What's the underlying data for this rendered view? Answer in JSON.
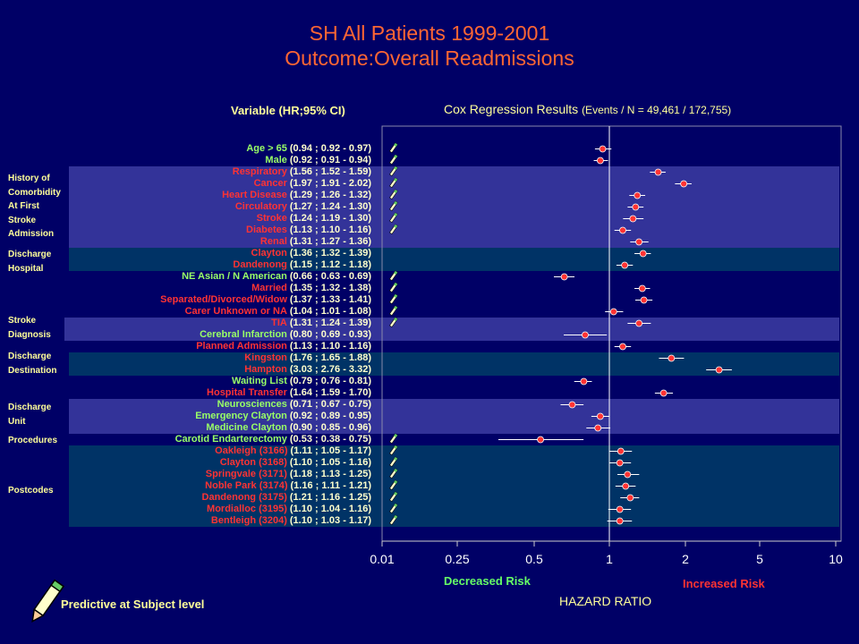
{
  "title_line1": "SH All Patients 1999-2001",
  "title_line2": "Outcome:Overall Readmissions",
  "header_variable": "Variable (HR;95% CI)",
  "header_cox": "Cox Regression Results",
  "header_cox_sub": "(Events / N = 49,461 / 172,755)",
  "groups": [
    {
      "label": "History of\nComorbidity\nAt First\nStroke\nAdmission"
    },
    {
      "label": "Discharge\nHospital"
    },
    {
      "label": "Stroke\nDiagnosis"
    },
    {
      "label": "Discharge\nDestination"
    },
    {
      "label": "Discharge\nUnit"
    },
    {
      "label": "Procedures"
    },
    {
      "label": "Postcodes"
    }
  ],
  "decreased_risk": "Decreased Risk",
  "increased_risk": "Increased Risk",
  "x_axis_label": "HAZARD RATIO",
  "footer": "Predictive at Subject level",
  "colors": {
    "background": "#000066",
    "band_blue": "#333399",
    "band_teal": "#003366",
    "point": "#ff3333",
    "title": "#ff6633",
    "header": "#ffff99"
  },
  "chart_data": {
    "type": "forest",
    "title": "SH All Patients 1999-2001",
    "subtitle": "Outcome:Overall Readmissions",
    "xlabel": "HAZARD RATIO",
    "x_scale": "log",
    "xlim": [
      0.01,
      10
    ],
    "xticks": [
      "0.01",
      "0.25",
      "0.5",
      "1",
      "2",
      "5",
      "10"
    ],
    "xtick_values": [
      0.01,
      0.25,
      0.5,
      1,
      2,
      5,
      10
    ],
    "reference_line": 1,
    "rows": [
      {
        "name": "Age > 65",
        "ci_text": "(0.94 ; 0.92 - 0.97)",
        "hr": 0.94,
        "lo": 0.92,
        "hi": 0.97,
        "name_color": "green",
        "icon": true
      },
      {
        "name": "Male",
        "ci_text": "(0.92 ; 0.91 - 0.94)",
        "hr": 0.92,
        "lo": 0.91,
        "hi": 0.94,
        "name_color": "green",
        "icon": true
      },
      {
        "name": "Respiratory",
        "ci_text": "(1.56 ; 1.52 - 1.59)",
        "hr": 1.56,
        "lo": 1.52,
        "hi": 1.59,
        "name_color": "red",
        "icon": true
      },
      {
        "name": "Cancer",
        "ci_text": "(1.97 ; 1.91 - 2.02)",
        "hr": 1.97,
        "lo": 1.91,
        "hi": 2.02,
        "name_color": "red",
        "icon": true
      },
      {
        "name": "Heart Disease",
        "ci_text": "(1.29 ; 1.26 - 1.32)",
        "hr": 1.29,
        "lo": 1.26,
        "hi": 1.32,
        "name_color": "red",
        "icon": true
      },
      {
        "name": "Circulatory",
        "ci_text": "(1.27 ; 1.24 - 1.30)",
        "hr": 1.27,
        "lo": 1.24,
        "hi": 1.3,
        "name_color": "red",
        "icon": true
      },
      {
        "name": "Stroke",
        "ci_text": "(1.24 ; 1.19 - 1.30)",
        "hr": 1.24,
        "lo": 1.19,
        "hi": 1.3,
        "name_color": "red",
        "icon": true
      },
      {
        "name": "Diabetes",
        "ci_text": "(1.13 ; 1.10 - 1.16)",
        "hr": 1.13,
        "lo": 1.1,
        "hi": 1.16,
        "name_color": "red",
        "icon": true
      },
      {
        "name": "Renal",
        "ci_text": "(1.31 ; 1.27 - 1.36)",
        "hr": 1.31,
        "lo": 1.27,
        "hi": 1.36,
        "name_color": "red",
        "icon": false
      },
      {
        "name": "Clayton",
        "ci_text": "(1.36 ; 1.32 - 1.39)",
        "hr": 1.36,
        "lo": 1.32,
        "hi": 1.39,
        "name_color": "red",
        "icon": false
      },
      {
        "name": "Dandenong",
        "ci_text": "(1.15 ; 1.12 - 1.18)",
        "hr": 1.15,
        "lo": 1.12,
        "hi": 1.18,
        "name_color": "red",
        "icon": false
      },
      {
        "name": "NE Asian / N American",
        "ci_text": "(0.66 ; 0.63 - 0.69)",
        "hr": 0.66,
        "lo": 0.63,
        "hi": 0.69,
        "name_color": "green",
        "icon": true
      },
      {
        "name": "Married",
        "ci_text": "(1.35 ; 1.32 - 1.38)",
        "hr": 1.35,
        "lo": 1.32,
        "hi": 1.38,
        "name_color": "red",
        "icon": true
      },
      {
        "name": "Separated/Divorced/Widow",
        "ci_text": "(1.37 ; 1.33 - 1.41)",
        "hr": 1.37,
        "lo": 1.33,
        "hi": 1.41,
        "name_color": "red",
        "icon": true
      },
      {
        "name": "Carer Unknown or NA",
        "ci_text": "(1.04 ; 1.01 - 1.08)",
        "hr": 1.04,
        "lo": 1.01,
        "hi": 1.08,
        "name_color": "red",
        "icon": true
      },
      {
        "name": "TIA",
        "ci_text": "(1.31 ; 1.24 - 1.39)",
        "hr": 1.31,
        "lo": 1.24,
        "hi": 1.39,
        "name_color": "red",
        "icon": true
      },
      {
        "name": "Cerebral Infarction",
        "ci_text": "(0.80 ; 0.69 - 0.93)",
        "hr": 0.8,
        "lo": 0.69,
        "hi": 0.93,
        "name_color": "green",
        "icon": false
      },
      {
        "name": "Planned Admission",
        "ci_text": "(1.13 ; 1.10 - 1.16)",
        "hr": 1.13,
        "lo": 1.1,
        "hi": 1.16,
        "name_color": "red",
        "icon": false
      },
      {
        "name": "Kingston",
        "ci_text": "(1.76 ; 1.65 - 1.88)",
        "hr": 1.76,
        "lo": 1.65,
        "hi": 1.88,
        "name_color": "red",
        "icon": false
      },
      {
        "name": "Hampton",
        "ci_text": "(3.03 ; 2.76 - 3.32)",
        "hr": 3.03,
        "lo": 2.76,
        "hi": 3.32,
        "name_color": "red",
        "icon": false
      },
      {
        "name": "Waiting List",
        "ci_text": "(0.79 ; 0.76 - 0.81)",
        "hr": 0.79,
        "lo": 0.76,
        "hi": 0.81,
        "name_color": "green",
        "icon": false
      },
      {
        "name": "Hospital Transfer",
        "ci_text": "(1.64 ; 1.59 - 1.70)",
        "hr": 1.64,
        "lo": 1.59,
        "hi": 1.7,
        "name_color": "red",
        "icon": false
      },
      {
        "name": "Neurosciences",
        "ci_text": "(0.71 ; 0.67 - 0.75)",
        "hr": 0.71,
        "lo": 0.67,
        "hi": 0.75,
        "name_color": "green",
        "icon": false
      },
      {
        "name": "Emergency Clayton",
        "ci_text": "(0.92 ; 0.89 - 0.95)",
        "hr": 0.92,
        "lo": 0.89,
        "hi": 0.95,
        "name_color": "green",
        "icon": false
      },
      {
        "name": "Medicine Clayton",
        "ci_text": "(0.90 ; 0.85 - 0.96)",
        "hr": 0.9,
        "lo": 0.85,
        "hi": 0.96,
        "name_color": "green",
        "icon": false
      },
      {
        "name": "Carotid Endarterectomy",
        "ci_text": "(0.53 ; 0.38 - 0.75)",
        "hr": 0.53,
        "lo": 0.38,
        "hi": 0.75,
        "name_color": "green",
        "icon": true
      },
      {
        "name": "Oakleigh (3166)",
        "ci_text": "(1.11 ; 1.05 - 1.17)",
        "hr": 1.11,
        "lo": 1.05,
        "hi": 1.17,
        "name_color": "red",
        "icon": true
      },
      {
        "name": "Clayton (3168)",
        "ci_text": "(1.10 ; 1.05 - 1.16)",
        "hr": 1.1,
        "lo": 1.05,
        "hi": 1.16,
        "name_color": "red",
        "icon": true
      },
      {
        "name": "Springvale (3171)",
        "ci_text": "(1.18 ; 1.13 - 1.25)",
        "hr": 1.18,
        "lo": 1.13,
        "hi": 1.25,
        "name_color": "red",
        "icon": true
      },
      {
        "name": "Noble Park (3174)",
        "ci_text": "(1.16 ; 1.11 - 1.21)",
        "hr": 1.16,
        "lo": 1.11,
        "hi": 1.21,
        "name_color": "red",
        "icon": true
      },
      {
        "name": "Dandenong (3175)",
        "ci_text": "(1.21 ; 1.16 - 1.25)",
        "hr": 1.21,
        "lo": 1.16,
        "hi": 1.25,
        "name_color": "red",
        "icon": true
      },
      {
        "name": "Mordialloc (3195)",
        "ci_text": "(1.10 ; 1.04 - 1.16)",
        "hr": 1.1,
        "lo": 1.04,
        "hi": 1.16,
        "name_color": "red",
        "icon": true
      },
      {
        "name": "Bentleigh (3204)",
        "ci_text": "(1.10 ; 1.03 - 1.17)",
        "hr": 1.1,
        "lo": 1.03,
        "hi": 1.17,
        "name_color": "red",
        "icon": true
      }
    ]
  }
}
